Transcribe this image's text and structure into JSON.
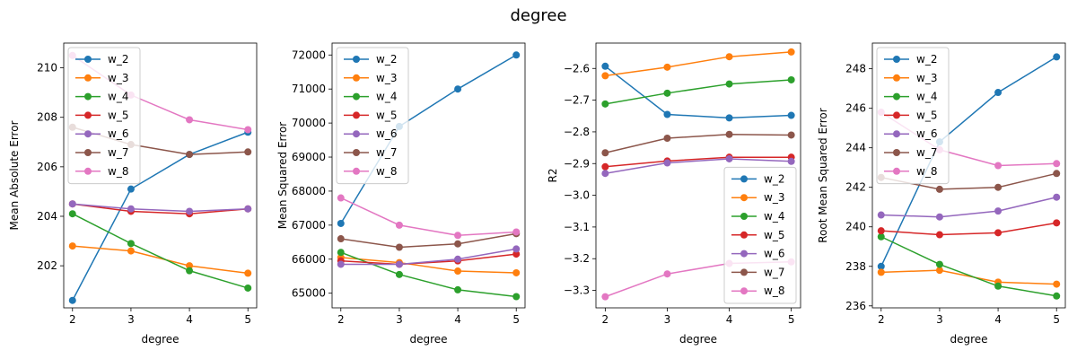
{
  "figure_title": "degree",
  "colors": [
    "#1f77b4",
    "#ff7f0e",
    "#2ca02c",
    "#d62728",
    "#9467bd",
    "#8c564b",
    "#e377c2"
  ],
  "chart_data": [
    {
      "type": "line",
      "xlabel": "degree",
      "ylabel": "Mean Absolute Error",
      "x": [
        2,
        3,
        4,
        5
      ],
      "xticks": [
        "2",
        "3",
        "4",
        "5"
      ],
      "yticks": [
        202,
        204,
        206,
        208,
        210
      ],
      "ylim": [
        200.3,
        211.0
      ],
      "legend": "upper-left",
      "series": [
        {
          "name": "w_2",
          "values": [
            200.6,
            205.1,
            206.5,
            207.4
          ]
        },
        {
          "name": "w_3",
          "values": [
            202.8,
            202.6,
            202.0,
            201.7
          ]
        },
        {
          "name": "w_4",
          "values": [
            204.1,
            202.9,
            201.8,
            201.1
          ]
        },
        {
          "name": "w_5",
          "values": [
            204.5,
            204.2,
            204.1,
            204.3
          ]
        },
        {
          "name": "w_6",
          "values": [
            204.5,
            204.3,
            204.2,
            204.3
          ]
        },
        {
          "name": "w_7",
          "values": [
            207.6,
            206.9,
            206.5,
            206.6
          ]
        },
        {
          "name": "w_8",
          "values": [
            210.5,
            208.9,
            207.9,
            207.5
          ]
        }
      ]
    },
    {
      "type": "line",
      "xlabel": "degree",
      "ylabel": "Mean Squared Error",
      "x": [
        2,
        3,
        4,
        5
      ],
      "xticks": [
        "2",
        "3",
        "4",
        "5"
      ],
      "yticks": [
        65000,
        66000,
        67000,
        68000,
        69000,
        70000,
        71000,
        72000
      ],
      "ylim": [
        64570,
        72350
      ],
      "legend": "upper-left",
      "series": [
        {
          "name": "w_2",
          "values": [
            67050,
            69900,
            71000,
            72000
          ]
        },
        {
          "name": "w_3",
          "values": [
            66050,
            65900,
            65650,
            65600
          ]
        },
        {
          "name": "w_4",
          "values": [
            66200,
            65550,
            65100,
            64900
          ]
        },
        {
          "name": "w_5",
          "values": [
            65950,
            65850,
            65950,
            66150
          ]
        },
        {
          "name": "w_6",
          "values": [
            65850,
            65850,
            66000,
            66300
          ]
        },
        {
          "name": "w_7",
          "values": [
            66600,
            66350,
            66450,
            66750
          ]
        },
        {
          "name": "w_8",
          "values": [
            67800,
            67000,
            66700,
            66800
          ]
        }
      ]
    },
    {
      "type": "line",
      "xlabel": "degree",
      "ylabel": "R2",
      "x": [
        2,
        3,
        4,
        5
      ],
      "xticks": [
        "2",
        "3",
        "4",
        "5"
      ],
      "yticks": [
        -3.3,
        -3.2,
        -3.1,
        -3.0,
        -2.9,
        -2.8,
        -2.7,
        -2.6
      ],
      "ytick_labels": [
        "−3.3",
        "−3.2",
        "−3.1",
        "−3.0",
        "−2.9",
        "−2.8",
        "−2.7",
        "−2.6"
      ],
      "ylim": [
        -3.355,
        -2.52
      ],
      "legend": "lower-right",
      "series": [
        {
          "name": "w_2",
          "values": [
            -2.593,
            -2.745,
            -2.756,
            -2.748
          ]
        },
        {
          "name": "w_3",
          "values": [
            -2.623,
            -2.596,
            -2.563,
            -2.548
          ]
        },
        {
          "name": "w_4",
          "values": [
            -2.712,
            -2.678,
            -2.649,
            -2.636
          ]
        },
        {
          "name": "w_5",
          "values": [
            -2.91,
            -2.892,
            -2.88,
            -2.88
          ]
        },
        {
          "name": "w_6",
          "values": [
            -2.931,
            -2.898,
            -2.885,
            -2.893
          ]
        },
        {
          "name": "w_7",
          "values": [
            -2.866,
            -2.82,
            -2.808,
            -2.81
          ]
        },
        {
          "name": "w_8",
          "values": [
            -3.32,
            -3.248,
            -3.215,
            -3.21
          ]
        }
      ]
    },
    {
      "type": "line",
      "xlabel": "degree",
      "ylabel": "Root Mean Squared Error",
      "x": [
        2,
        3,
        4,
        5
      ],
      "xticks": [
        "2",
        "3",
        "4",
        "5"
      ],
      "yticks": [
        236,
        238,
        240,
        242,
        244,
        246,
        248
      ],
      "ylim": [
        235.9,
        249.3
      ],
      "legend": "upper-left",
      "series": [
        {
          "name": "w_2",
          "values": [
            238.0,
            244.3,
            246.8,
            248.6
          ]
        },
        {
          "name": "w_3",
          "values": [
            237.7,
            237.8,
            237.2,
            237.1
          ]
        },
        {
          "name": "w_4",
          "values": [
            239.5,
            238.1,
            237.0,
            236.5
          ]
        },
        {
          "name": "w_5",
          "values": [
            239.8,
            239.6,
            239.7,
            240.2
          ]
        },
        {
          "name": "w_6",
          "values": [
            240.6,
            240.5,
            240.8,
            241.5
          ]
        },
        {
          "name": "w_7",
          "values": [
            242.5,
            241.9,
            242.0,
            242.7
          ]
        },
        {
          "name": "w_8",
          "values": [
            245.8,
            243.9,
            243.1,
            243.2
          ]
        }
      ]
    }
  ]
}
